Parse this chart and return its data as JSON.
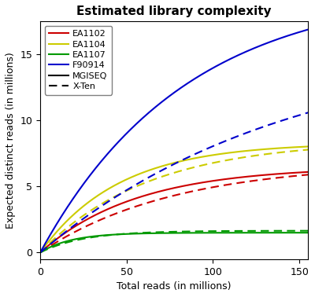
{
  "title": "Estimated library complexity",
  "xlabel": "Total reads (in millions)",
  "ylabel": "Expected distinct reads (in millions)",
  "xlim": [
    0,
    155
  ],
  "ylim": [
    -0.5,
    17.5
  ],
  "yticks": [
    0,
    5,
    10,
    15
  ],
  "xticks": [
    0,
    50,
    100,
    150
  ],
  "samples": [
    "EA1102",
    "EA1104",
    "EA1107",
    "F90914"
  ],
  "colors": [
    "#CC0000",
    "#CCCC00",
    "#009900",
    "#0000CC"
  ],
  "mgiseq_params": [
    {
      "N": 6.5,
      "k": 0.018
    },
    {
      "N": 8.3,
      "k": 0.022
    },
    {
      "N": 1.5,
      "k": 0.055
    },
    {
      "N": 20.0,
      "k": 0.012
    }
  ],
  "xten_params": [
    {
      "N": 6.8,
      "k": 0.013
    },
    {
      "N": 8.5,
      "k": 0.016
    },
    {
      "N": 1.65,
      "k": 0.04
    },
    {
      "N": 16.0,
      "k": 0.007
    }
  ],
  "background_color": "#ffffff",
  "linewidth": 1.5
}
